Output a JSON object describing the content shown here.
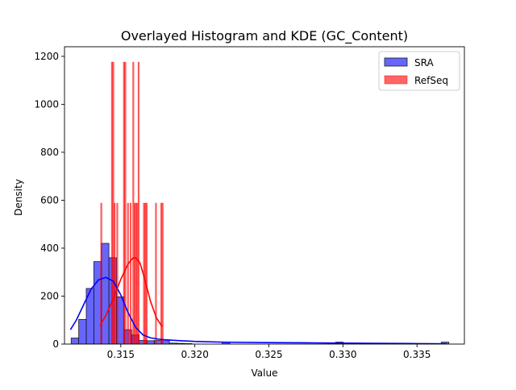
{
  "chart_data": {
    "type": "bar",
    "title": "Overlayed Histogram and KDE (GC_Content)",
    "xlabel": "Value",
    "ylabel": "Density",
    "xlim": [
      0.3112,
      0.3382
    ],
    "ylim": [
      0,
      1240
    ],
    "xticks": [
      0.315,
      0.32,
      0.325,
      0.33,
      0.335
    ],
    "xtick_labels": [
      "0.315",
      "0.320",
      "0.325",
      "0.330",
      "0.335"
    ],
    "yticks": [
      0,
      200,
      400,
      600,
      800,
      1000,
      1200
    ],
    "ytick_labels": [
      "0",
      "200",
      "400",
      "600",
      "800",
      "1000",
      "1200"
    ],
    "legend": {
      "placement": "top-right",
      "entries": [
        "SRA",
        "RefSeq"
      ]
    },
    "grid": false,
    "series": [
      {
        "name": "SRA",
        "color": "#0000ff",
        "bin_width": 0.00051,
        "bins": [
          {
            "x0": 0.31165,
            "value": 25
          },
          {
            "x0": 0.31216,
            "value": 103
          },
          {
            "x0": 0.31267,
            "value": 232
          },
          {
            "x0": 0.31318,
            "value": 344
          },
          {
            "x0": 0.31369,
            "value": 420
          },
          {
            "x0": 0.3142,
            "value": 360
          },
          {
            "x0": 0.31471,
            "value": 197
          },
          {
            "x0": 0.31522,
            "value": 60
          },
          {
            "x0": 0.31573,
            "value": 38
          },
          {
            "x0": 0.31624,
            "value": 15
          },
          {
            "x0": 0.31675,
            "value": 14
          },
          {
            "x0": 0.31726,
            "value": 15
          },
          {
            "x0": 0.31777,
            "value": 18
          },
          {
            "x0": 0.31828,
            "value": 4
          },
          {
            "x0": 0.31879,
            "value": 3
          },
          {
            "x0": 0.3193,
            "value": 2
          },
          {
            "x0": 0.32185,
            "value": 8
          },
          {
            "x0": 0.3295,
            "value": 8
          },
          {
            "x0": 0.33664,
            "value": 8
          }
        ],
        "kde": {
          "x": [
            0.3116,
            0.312,
            0.3125,
            0.313,
            0.3135,
            0.314,
            0.3145,
            0.315,
            0.3155,
            0.316,
            0.3165,
            0.317,
            0.3175,
            0.318,
            0.319,
            0.32,
            0.322,
            0.325,
            0.328,
            0.33,
            0.332,
            0.335,
            0.337
          ],
          "y": [
            60,
            100,
            165,
            230,
            268,
            278,
            262,
            205,
            130,
            70,
            38,
            26,
            21,
            18,
            14,
            11,
            8,
            6,
            5,
            4,
            3,
            2,
            1
          ]
        }
      },
      {
        "name": "RefSeq",
        "color": "#ff0000",
        "bin_width": 9e-05,
        "bins": [
          {
            "x0": 0.31364,
            "value": 588
          },
          {
            "x0": 0.31436,
            "value": 1176
          },
          {
            "x0": 0.31445,
            "value": 1176
          },
          {
            "x0": 0.31454,
            "value": 588
          },
          {
            "x0": 0.31472,
            "value": 588
          },
          {
            "x0": 0.31517,
            "value": 1176
          },
          {
            "x0": 0.31526,
            "value": 1176
          },
          {
            "x0": 0.31544,
            "value": 588
          },
          {
            "x0": 0.31562,
            "value": 588
          },
          {
            "x0": 0.3158,
            "value": 1176
          },
          {
            "x0": 0.31589,
            "value": 588
          },
          {
            "x0": 0.31598,
            "value": 588
          },
          {
            "x0": 0.31607,
            "value": 588
          },
          {
            "x0": 0.31616,
            "value": 1176
          },
          {
            "x0": 0.31652,
            "value": 588
          },
          {
            "x0": 0.31661,
            "value": 588
          },
          {
            "x0": 0.3167,
            "value": 588
          },
          {
            "x0": 0.31733,
            "value": 588
          },
          {
            "x0": 0.31769,
            "value": 588
          },
          {
            "x0": 0.31778,
            "value": 588
          }
        ],
        "kde": {
          "x": [
            0.3136,
            0.314,
            0.3145,
            0.315,
            0.3155,
            0.3158,
            0.316,
            0.3163,
            0.3166,
            0.317,
            0.3174,
            0.3178
          ],
          "y": [
            78,
            120,
            190,
            270,
            335,
            358,
            360,
            338,
            275,
            180,
            110,
            72
          ]
        }
      }
    ]
  }
}
